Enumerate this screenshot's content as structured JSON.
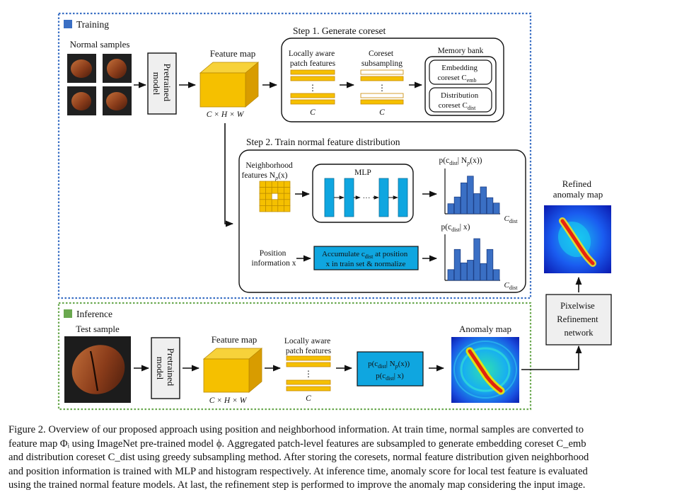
{
  "colors": {
    "training_border": "#3a6fc4",
    "inference_border": "#6aa84f",
    "training_swatch": "#3a6fc4",
    "inference_swatch": "#6aa84f",
    "feature_yellow": "#f5c000",
    "feature_orange": "#e6a100",
    "mlp_blue": "#0fa6e0",
    "histogram_blue": "#3a6fc4"
  },
  "training": {
    "label": "Training",
    "normal_samples_label": "Normal samples",
    "pretrained_model": [
      "Pretrained",
      "model"
    ],
    "feature_map_label": "Feature map",
    "feature_map_dims": "C × H × W"
  },
  "step1": {
    "title": "Step 1. Generate coreset",
    "patch_features_label": [
      "Locally aware",
      "patch features"
    ],
    "coreset_subsampling_label": [
      "Coreset",
      "subsampling"
    ],
    "dim_c": "C",
    "ellipsis": "⋮",
    "memory_bank": {
      "title": "Memory bank",
      "embedding": [
        "Embedding",
        "coreset C",
        "emb"
      ],
      "distribution": [
        "Distribution",
        "coreset C",
        "dist"
      ]
    }
  },
  "step2": {
    "title": "Step 2. Train normal feature distribution",
    "neighborhood_label": [
      "Neighborhood",
      "features N",
      "p",
      "(x)"
    ],
    "mlp_label": "MLP",
    "mlp_dots": "···",
    "position_label": [
      "Position",
      "information x"
    ],
    "accumulate_label": [
      "Accumulate c",
      "dist",
      " at position",
      "x in train set & normalize"
    ],
    "hist1_title": [
      "p(c",
      "dist",
      "| N",
      "p",
      "(x))"
    ],
    "hist2_title": [
      "p(c",
      "dist",
      "| x)"
    ],
    "hist_xlabel": [
      "C",
      "dist"
    ]
  },
  "chart_data": [
    {
      "type": "bar",
      "title": "p(cdist| Np(x))",
      "xlabel": "Cdist",
      "ylabel": "",
      "values": [
        1.5,
        2.5,
        4.6,
        5.6,
        3.0,
        4.0,
        2.4,
        1.6
      ]
    },
    {
      "type": "bar",
      "title": "p(cdist| x)",
      "xlabel": "Cdist",
      "ylabel": "",
      "values": [
        1.6,
        4.6,
        2.6,
        3.0,
        6.2,
        2.5,
        4.6,
        1.6
      ]
    }
  ],
  "inference": {
    "label": "Inference",
    "test_sample_label": "Test sample",
    "pretrained_model": [
      "Pretrained",
      "model"
    ],
    "feature_map_label": "Feature map",
    "feature_map_dims": "C × H × W",
    "patch_features_label": [
      "Locally aware",
      "patch features"
    ],
    "dim_c": "C",
    "prob_box": [
      "p(c",
      "dist",
      "| N",
      "p",
      "(x))",
      "p(c",
      "dist",
      "| x)"
    ],
    "anomaly_map_label": "Anomaly map"
  },
  "refinement": {
    "refined_label": [
      "Refined",
      "anomaly map"
    ],
    "network_label": [
      "Pixelwise",
      "Refinement",
      "network"
    ]
  },
  "caption": {
    "lines": [
      "Figure 2. Overview of our proposed approach using position and neighborhood information. At train time, normal samples are converted to",
      "feature map Φᵢ using ImageNet pre-trained model ϕ. Aggregated patch-level features are subsampled to generate embedding coreset C_emb",
      "and distribution coreset C_dist using greedy subsampling method. After storing the coresets, normal feature distribution given neighborhood",
      "and position information is trained with MLP and histogram respectively. At inference time, anomaly score for local test feature is evaluated",
      "using the trained normal feature models. At last, the refinement step is performed to improve the anomaly map considering the input image."
    ]
  }
}
